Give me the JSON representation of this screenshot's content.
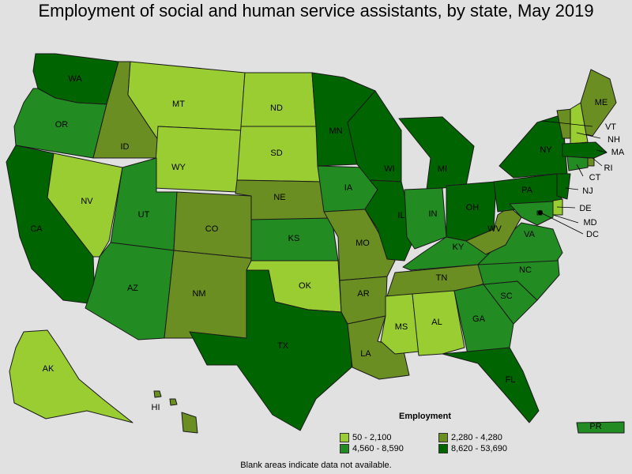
{
  "title": "Employment of social and human service assistants, by state, May 2019",
  "legend": {
    "title": "Employment",
    "bins": [
      {
        "label": "50 - 2,100",
        "color": "#9acd32"
      },
      {
        "label": "2,280 - 4,280",
        "color": "#6b8e23"
      },
      {
        "label": "4,560 - 8,590",
        "color": "#228b22"
      },
      {
        "label": "8,620 - 53,690",
        "color": "#006400"
      }
    ]
  },
  "footnote": "Blank areas indicate data not available.",
  "states": [
    {
      "code": "WA",
      "bin": 3
    },
    {
      "code": "OR",
      "bin": 2
    },
    {
      "code": "CA",
      "bin": 3
    },
    {
      "code": "NV",
      "bin": 0
    },
    {
      "code": "ID",
      "bin": 1
    },
    {
      "code": "MT",
      "bin": 0
    },
    {
      "code": "WY",
      "bin": 0
    },
    {
      "code": "UT",
      "bin": 2
    },
    {
      "code": "AZ",
      "bin": 2
    },
    {
      "code": "CO",
      "bin": 1
    },
    {
      "code": "NM",
      "bin": 1
    },
    {
      "code": "ND",
      "bin": 0
    },
    {
      "code": "SD",
      "bin": 0
    },
    {
      "code": "NE",
      "bin": 1
    },
    {
      "code": "KS",
      "bin": 2
    },
    {
      "code": "OK",
      "bin": 0
    },
    {
      "code": "TX",
      "bin": 3
    },
    {
      "code": "MN",
      "bin": 3
    },
    {
      "code": "IA",
      "bin": 2
    },
    {
      "code": "MO",
      "bin": 1
    },
    {
      "code": "AR",
      "bin": 1
    },
    {
      "code": "LA",
      "bin": 1
    },
    {
      "code": "WI",
      "bin": 3
    },
    {
      "code": "IL",
      "bin": 3
    },
    {
      "code": "MI",
      "bin": 3
    },
    {
      "code": "IN",
      "bin": 2
    },
    {
      "code": "OH",
      "bin": 3
    },
    {
      "code": "KY",
      "bin": 2
    },
    {
      "code": "TN",
      "bin": 1
    },
    {
      "code": "MS",
      "bin": 0
    },
    {
      "code": "AL",
      "bin": 0
    },
    {
      "code": "GA",
      "bin": 2
    },
    {
      "code": "FL",
      "bin": 3
    },
    {
      "code": "SC",
      "bin": 2
    },
    {
      "code": "NC",
      "bin": 2
    },
    {
      "code": "VA",
      "bin": 2
    },
    {
      "code": "WV",
      "bin": 1
    },
    {
      "code": "PA",
      "bin": 3
    },
    {
      "code": "NY",
      "bin": 3
    },
    {
      "code": "VT",
      "bin": 1
    },
    {
      "code": "NH",
      "bin": 0
    },
    {
      "code": "ME",
      "bin": 1
    },
    {
      "code": "MA",
      "bin": 3
    },
    {
      "code": "RI",
      "bin": 1
    },
    {
      "code": "CT",
      "bin": 2
    },
    {
      "code": "NJ",
      "bin": 3
    },
    {
      "code": "DE",
      "bin": 0
    },
    {
      "code": "MD",
      "bin": 2
    },
    {
      "code": "DC",
      "bin": 3
    },
    {
      "code": "AK",
      "bin": 0
    },
    {
      "code": "HI",
      "bin": 1
    },
    {
      "code": "PR",
      "bin": 2
    }
  ]
}
